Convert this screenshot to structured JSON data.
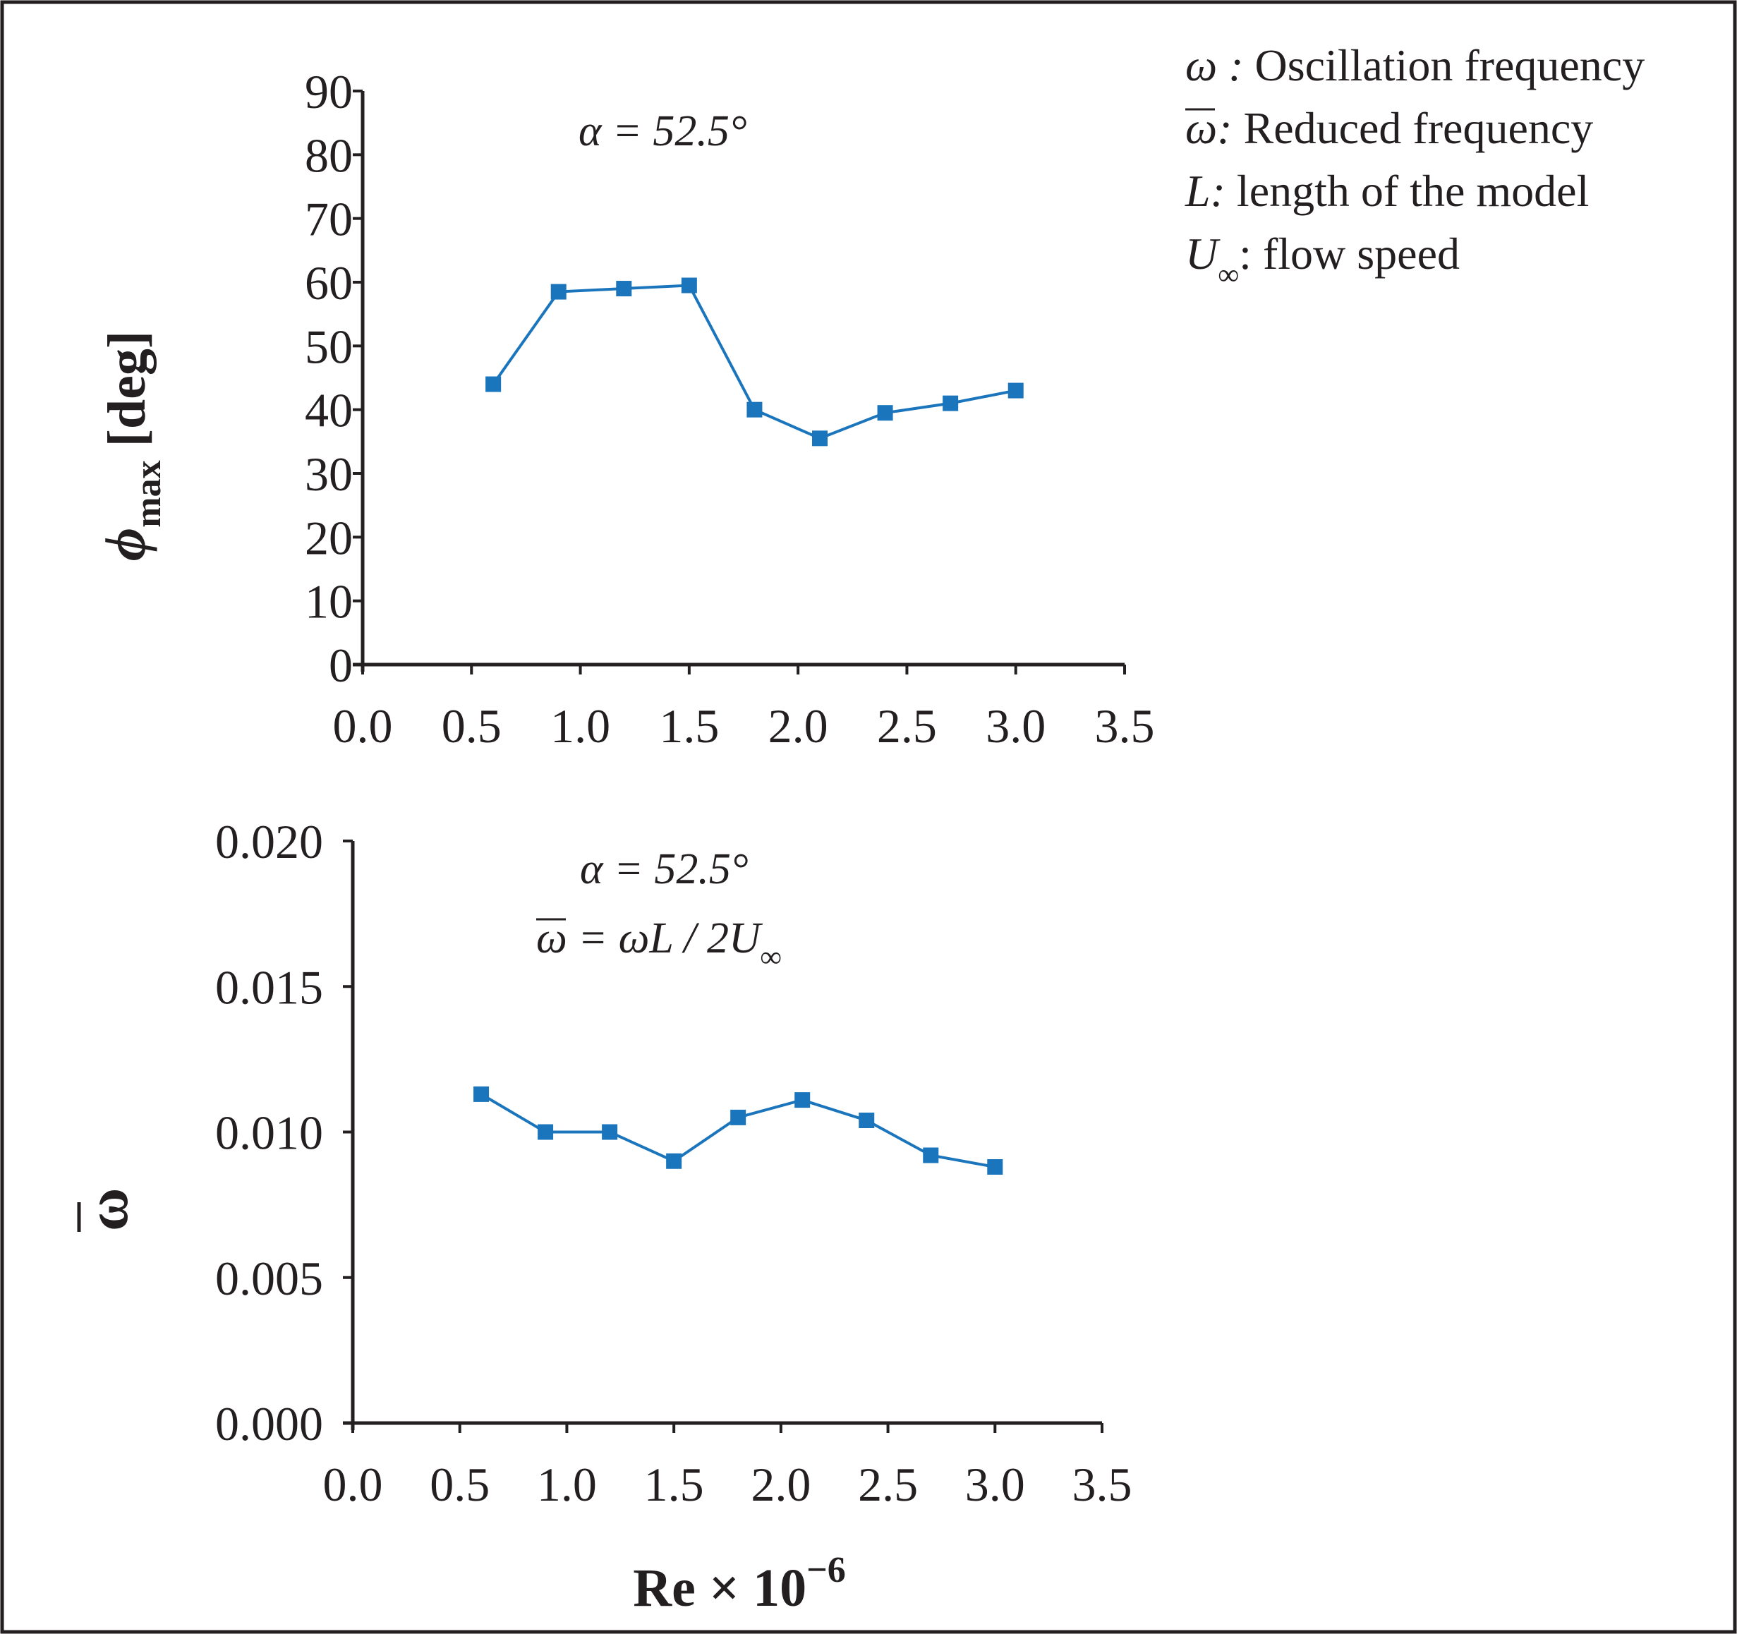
{
  "legend": {
    "items": [
      {
        "symbol": "ω :",
        "text": " Oscillation frequency"
      },
      {
        "symbol": "ω:",
        "text": " Reduced frequency"
      },
      {
        "symbol": "L:",
        "text": " length of the model"
      },
      {
        "symbol": "U",
        "sub": "∞",
        "text": ": flow speed"
      }
    ]
  },
  "colors": {
    "series": "#1a75bc",
    "axis": "#231f20",
    "border": "#231f20"
  },
  "xlabel": {
    "main": "Re × 10",
    "sup": "−6"
  },
  "chart_data": [
    {
      "type": "line",
      "annotation": "α = 52.5°",
      "ylabel": {
        "symbol": "ϕ",
        "sub": "max",
        "unit": " [deg]"
      },
      "xlim": [
        0.0,
        3.5
      ],
      "ylim": [
        0,
        90
      ],
      "xticks": [
        "0.0",
        "0.5",
        "1.0",
        "1.5",
        "2.0",
        "2.5",
        "3.0",
        "3.5"
      ],
      "yticks": [
        "0",
        "10",
        "20",
        "30",
        "40",
        "50",
        "60",
        "70",
        "80",
        "90"
      ],
      "x": [
        0.6,
        0.9,
        1.2,
        1.5,
        1.8,
        2.1,
        2.4,
        2.7,
        3.0
      ],
      "y": [
        44,
        58.5,
        59,
        59.5,
        40,
        35.5,
        39.5,
        41,
        43
      ],
      "marker": "square",
      "grid": false
    },
    {
      "type": "line",
      "annotation": "α = 52.5°",
      "formula": {
        "lhs": "ω",
        "rhs": " = ωL / 2U",
        "sub": "∞"
      },
      "ylabel": {
        "symbol": "ω"
      },
      "xlim": [
        0.0,
        3.5
      ],
      "ylim": [
        0.0,
        0.02
      ],
      "xticks": [
        "0.0",
        "0.5",
        "1.0",
        "1.5",
        "2.0",
        "2.5",
        "3.0",
        "3.5"
      ],
      "yticks": [
        "0.000",
        "0.005",
        "0.010",
        "0.015",
        "0.020"
      ],
      "x": [
        0.6,
        0.9,
        1.2,
        1.5,
        1.8,
        2.1,
        2.4,
        2.7,
        3.0
      ],
      "y": [
        0.0113,
        0.01,
        0.01,
        0.009,
        0.0105,
        0.0111,
        0.0104,
        0.0092,
        0.0088
      ],
      "marker": "square",
      "grid": false
    }
  ]
}
